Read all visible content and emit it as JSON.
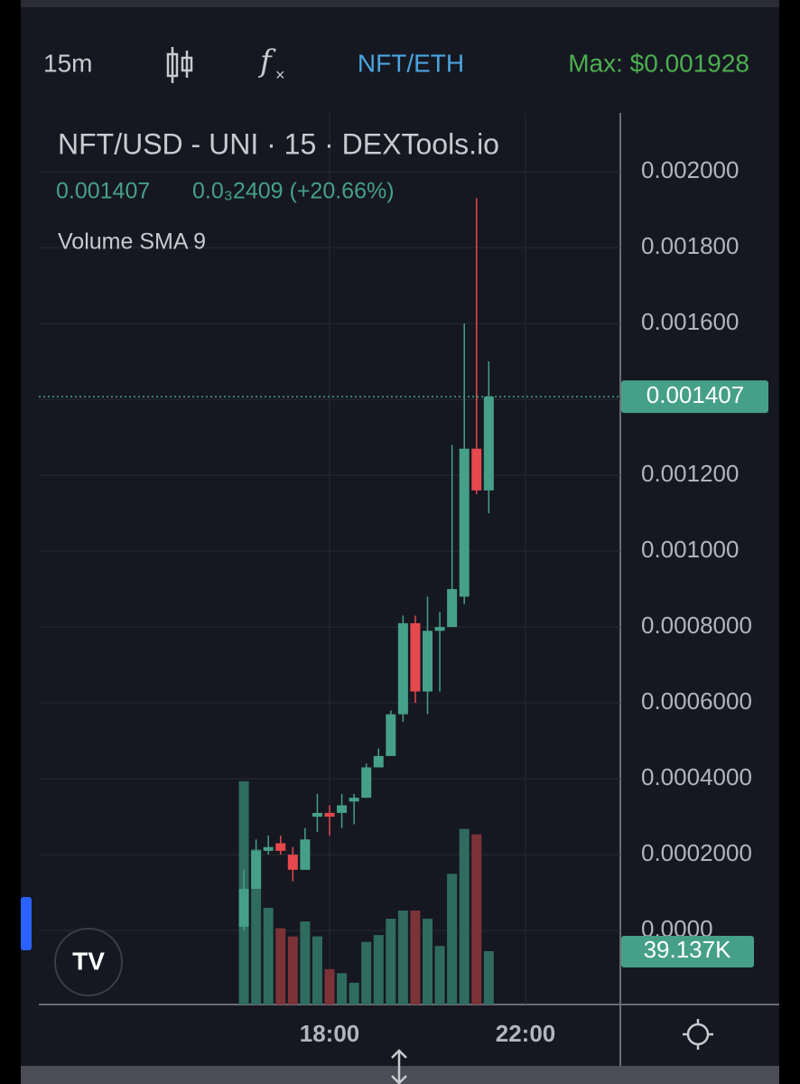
{
  "toolbar": {
    "interval": "15m",
    "pair": "NFT/ETH",
    "max": "Max: $0.001928"
  },
  "chart_data": {
    "type": "candlestick",
    "title": "NFT/USD - UNI · 15 · DEXTools.io",
    "header": {
      "price": "0.001407",
      "change": "0.0₃2409 (+20.66%)"
    },
    "indicator": "Volume SMA 9",
    "x": [
      16.25,
      16.5,
      16.75,
      17,
      17.25,
      17.5,
      17.75,
      18,
      18.25,
      18.5,
      18.75,
      19,
      19.25,
      19.5,
      19.75,
      20,
      20.25,
      20.5,
      20.75,
      21,
      21.25
    ],
    "open": [
      1e-05,
      0.00011,
      0.00021,
      0.00023,
      0.0002,
      0.00016,
      0.0003,
      0.00031,
      0.00031,
      0.00034,
      0.00035,
      0.00043,
      0.00046,
      0.00057,
      0.00081,
      0.00063,
      0.00079,
      0.0008,
      0.00088,
      0.00127,
      0.00116
    ],
    "high": [
      0.00016,
      0.00024,
      0.00025,
      0.00025,
      0.00022,
      0.00027,
      0.00036,
      0.00033,
      0.00036,
      0.00036,
      0.00044,
      0.00048,
      0.00058,
      0.00083,
      0.00083,
      0.00088,
      0.00084,
      0.00128,
      0.0016,
      0.00193,
      0.0015
    ],
    "low": [
      0,
      0.00011,
      0.0002,
      0.0002,
      0.00013,
      0.00016,
      0.00026,
      0.00025,
      0.00027,
      0.00028,
      0.00035,
      0.00043,
      0.00046,
      0.00055,
      0.0006,
      0.00057,
      0.00063,
      0.0008,
      0.00086,
      0.00115,
      0.0011
    ],
    "close": [
      0.00011,
      0.00021,
      0.00022,
      0.00021,
      0.00016,
      0.00024,
      0.00031,
      0.0003,
      0.00033,
      0.00035,
      0.00043,
      0.00046,
      0.00057,
      0.00081,
      0.00063,
      0.00079,
      0.0008,
      0.0009,
      0.00127,
      0.00116,
      0.001407
    ],
    "volume": {
      "values": [
        164000,
        114000,
        71000,
        56000,
        50000,
        61000,
        50000,
        26000,
        23000,
        16000,
        46000,
        51000,
        63000,
        69000,
        69000,
        63000,
        43000,
        96000,
        129000,
        125000,
        39137
      ],
      "last_label": "39.137K"
    },
    "colors": {
      "up": "#46a088",
      "down": "#e5484d",
      "volume_up": "#2f6b5e",
      "volume_down": "#7b3338"
    },
    "last_price": {
      "value": 0.001407,
      "label": "0.001407"
    },
    "xlim": [
      12.065,
      23.935
    ],
    "xticks": [
      {
        "value": 18,
        "label": "18:00"
      },
      {
        "value": 22,
        "label": "22:00"
      }
    ],
    "ylim": [
      -0.000195,
      0.002155
    ],
    "yticks": [
      {
        "value": 0,
        "label": "0.0000"
      },
      {
        "value": 0.0002,
        "label": "0.0002000"
      },
      {
        "value": 0.0004,
        "label": "0.0004000"
      },
      {
        "value": 0.0006,
        "label": "0.0006000"
      },
      {
        "value": 0.0008,
        "label": "0.0008000"
      },
      {
        "value": 0.001,
        "label": "0.001000"
      },
      {
        "value": 0.0012,
        "label": "0.001200"
      },
      {
        "value": 0.0014,
        "label": "0.001400"
      },
      {
        "value": 0.0016,
        "label": "0.001600"
      },
      {
        "value": 0.0018,
        "label": "0.001800"
      },
      {
        "value": 0.002,
        "label": "0.002000"
      }
    ],
    "y2lim": [
      0,
      655000
    ],
    "grid": true
  }
}
